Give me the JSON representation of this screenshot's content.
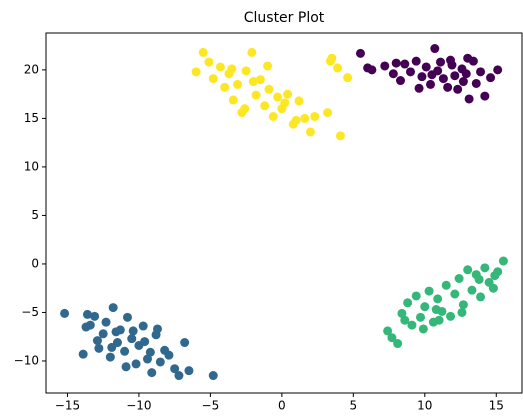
{
  "chart_data": {
    "type": "scatter",
    "title": "Cluster Plot",
    "xlim": [
      -16.5,
      16.8
    ],
    "ylim": [
      -13.3,
      23.8
    ],
    "xticks": [
      {
        "value": -15,
        "label": "−15"
      },
      {
        "value": -10,
        "label": "−10"
      },
      {
        "value": -5,
        "label": "−5"
      },
      0,
      5,
      10,
      15
    ],
    "yticks": [
      {
        "value": -10,
        "label": "−10"
      },
      {
        "value": -5,
        "label": "−5"
      },
      0,
      5,
      10,
      15,
      20
    ],
    "series": [
      {
        "color": "#440154",
        "x": [
          5.5,
          6.0,
          6.3,
          7.2,
          7.8,
          8.3,
          8.6,
          9.0,
          9.4,
          9.8,
          10.1,
          10.4,
          10.7,
          10.9,
          11.1,
          11.3,
          11.6,
          11.9,
          12.1,
          12.3,
          12.6,
          12.9,
          13.1,
          13.4,
          13.6,
          13.9,
          14.2,
          14.6,
          15.1,
          10.5,
          11.8,
          12.7,
          9.6,
          13.0,
          8.0
        ],
        "y": [
          21.7,
          20.2,
          20.0,
          20.4,
          19.6,
          18.9,
          20.6,
          19.8,
          20.9,
          19.3,
          20.3,
          18.5,
          22.2,
          19.9,
          20.8,
          19.1,
          18.2,
          20.5,
          19.4,
          18.0,
          20.1,
          19.6,
          17.0,
          20.9,
          18.6,
          19.8,
          17.3,
          19.2,
          20.0,
          19.5,
          21.0,
          18.8,
          18.1,
          21.2,
          20.7
        ]
      },
      {
        "color": "#31688e",
        "x": [
          -15.2,
          -13.9,
          -13.6,
          -13.4,
          -13.1,
          -12.8,
          -12.5,
          -12.3,
          -12.0,
          -11.8,
          -11.5,
          -11.3,
          -11.0,
          -10.8,
          -10.5,
          -10.2,
          -10.0,
          -9.7,
          -9.4,
          -9.1,
          -8.8,
          -8.5,
          -8.2,
          -7.9,
          -7.5,
          -7.2,
          -6.8,
          -6.5,
          -4.8,
          -11.6,
          -10.4,
          -9.6,
          -12.9,
          -8.7,
          -10.9,
          -13.7,
          -11.9,
          -9.2
        ],
        "y": [
          -5.1,
          -9.3,
          -5.2,
          -6.3,
          -5.4,
          -8.7,
          -7.2,
          -6.0,
          -9.6,
          -4.5,
          -8.1,
          -6.8,
          -9.0,
          -5.5,
          -7.7,
          -10.3,
          -8.4,
          -6.4,
          -9.8,
          -11.2,
          -7.3,
          -10.1,
          -8.9,
          -9.4,
          -10.8,
          -11.5,
          -8.1,
          -11.0,
          -11.5,
          -7.0,
          -6.9,
          -8.0,
          -7.9,
          -6.7,
          -10.6,
          -6.5,
          -8.6,
          -9.1
        ]
      },
      {
        "color": "#35b779",
        "x": [
          7.4,
          7.7,
          8.1,
          8.4,
          8.8,
          9.1,
          9.4,
          9.7,
          10.0,
          10.3,
          10.6,
          10.9,
          11.2,
          11.5,
          11.8,
          12.1,
          12.4,
          12.7,
          13.0,
          13.3,
          13.6,
          13.9,
          14.2,
          14.5,
          14.8,
          15.1,
          15.5,
          9.9,
          11.0,
          12.6,
          13.8,
          8.6,
          14.9,
          10.8
        ],
        "y": [
          -6.9,
          -7.6,
          -8.2,
          -5.1,
          -4.0,
          -6.3,
          -3.3,
          -5.5,
          -4.4,
          -2.8,
          -6.0,
          -3.6,
          -4.9,
          -2.2,
          -5.4,
          -3.1,
          -1.5,
          -4.2,
          -0.6,
          -2.7,
          -1.1,
          -3.4,
          -0.4,
          -1.9,
          -2.5,
          -0.8,
          0.3,
          -6.7,
          -5.8,
          -5.0,
          -1.6,
          -5.8,
          -1.2,
          -4.7
        ]
      },
      {
        "color": "#fde725",
        "x": [
          -6.0,
          -5.5,
          -5.1,
          -4.8,
          -4.3,
          -4.0,
          -3.7,
          -3.4,
          -3.1,
          -2.8,
          -2.5,
          -2.1,
          -1.8,
          -1.5,
          -1.2,
          -0.9,
          -0.6,
          -0.3,
          0.0,
          0.4,
          0.8,
          1.2,
          1.6,
          2.0,
          2.3,
          3.2,
          3.5,
          3.9,
          4.1,
          4.6,
          -2.0,
          -1.0,
          0.2,
          -3.5,
          1.0,
          -2.6,
          3.4
        ],
        "y": [
          19.8,
          21.8,
          20.8,
          19.1,
          20.3,
          18.2,
          19.6,
          16.9,
          18.5,
          15.6,
          19.9,
          21.8,
          17.4,
          19.0,
          16.3,
          18.0,
          15.2,
          17.2,
          16.0,
          17.5,
          14.4,
          16.8,
          15.0,
          13.6,
          15.2,
          15.6,
          21.2,
          20.2,
          13.2,
          19.2,
          18.8,
          20.4,
          16.6,
          20.1,
          14.8,
          16.0,
          20.9
        ]
      }
    ]
  }
}
